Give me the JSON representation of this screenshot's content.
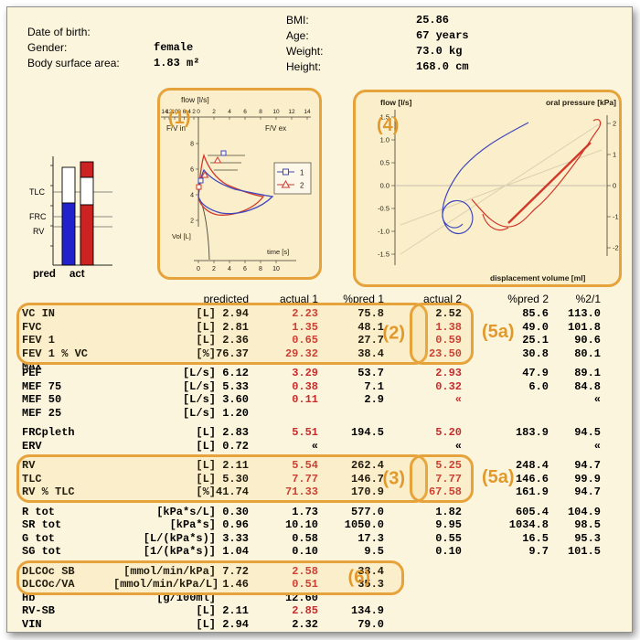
{
  "patient": {
    "dob_label": "Date of birth:",
    "gender_label": "Gender:",
    "gender": "female",
    "bsa_label": "Body surface area:",
    "bsa": "1.83 m²",
    "bmi_label": "BMI:",
    "bmi": "25.86",
    "age_label": "Age:",
    "age": "67 years",
    "weight_label": "Weight:",
    "weight": "73.0 kg",
    "height_label": "Height:",
    "height": "168.0 cm"
  },
  "annotations": {
    "fv_loop": "(1)",
    "spirometry": "(2)",
    "volumes": "(3)",
    "pv_loop": "(4)",
    "trial2_top": "(5a)",
    "trial2_mid": "(5a)",
    "diffusion": "(6)"
  },
  "volume_bars": {
    "ref_labels": [
      "TLC",
      "FRC",
      "RV"
    ],
    "pred_label": "pred",
    "act_label": "act"
  },
  "fv_chart": {
    "title": "flow [l/s]",
    "fv_in": "F/V in",
    "fv_ex": "F/V ex",
    "top_ticks": [
      "14",
      "12",
      "10",
      "8",
      "6",
      "4",
      "2",
      "0",
      "2",
      "4",
      "6",
      "8",
      "10",
      "12",
      "14"
    ],
    "flow_ticks": [
      "8",
      "6",
      "4",
      "2"
    ],
    "vol_label": "Vol [L]",
    "time_ticks": [
      "0",
      "2",
      "4",
      "6",
      "8",
      "10"
    ],
    "time_label": "time [s]",
    "legend_1": "1",
    "legend_2": "2"
  },
  "pv_chart": {
    "flow_label": "flow [l/s]",
    "pressure_label": "oral pressure [kPa]",
    "left_ticks": [
      "1.5",
      "1.0",
      "0.5",
      "0.0",
      "-0.5",
      "-1.0",
      "-1.5"
    ],
    "right_ticks": [
      "2",
      "1",
      "0",
      "-1",
      "-2"
    ],
    "volume_label": "displacement volume [ml]"
  },
  "colors": {
    "trial1_blue": "#2233cc",
    "trial2_red": "#cc2222",
    "annotation_orange": "#e7a33b",
    "abnormal_red": "#c52d2d",
    "page_cream": "#fcf5dd"
  },
  "table": {
    "headers": {
      "pred": "predicted",
      "act1": "actual 1",
      "pp1": "%pred 1",
      "act2": "actual 2",
      "pp2": "%pred 2",
      "ratio": "%2/1"
    },
    "rows": [
      {
        "name": "VC IN",
        "unit": "[L]",
        "pred": "2.94",
        "act1": "2.23",
        "act1_red": true,
        "pp1": "75.8",
        "act2": "2.52",
        "pp2": "85.6",
        "ratio": "113.0"
      },
      {
        "name": "FVC",
        "unit": "[L]",
        "pred": "2.81",
        "act1": "1.35",
        "act1_red": true,
        "pp1": "48.1",
        "act2": "1.38",
        "act2_red": true,
        "pp2": "49.0",
        "ratio": "101.8"
      },
      {
        "name": "FEV 1",
        "unit": "[L]",
        "pred": "2.36",
        "act1": "0.65",
        "act1_red": true,
        "pp1": "27.7",
        "act2": "0.59",
        "act2_red": true,
        "pp2": "25.1",
        "ratio": "90.6"
      },
      {
        "name": "FEV 1 % VC MAX",
        "unit": "[%]",
        "pred": "76.37",
        "act1": "29.32",
        "act1_red": true,
        "pp1": "38.4",
        "act2": "23.50",
        "act2_red": true,
        "pp2": "30.8",
        "ratio": "80.1"
      },
      {
        "name": "PEF",
        "unit": "[L/s]",
        "pred": "6.12",
        "act1": "3.29",
        "act1_red": true,
        "pp1": "53.7",
        "act2": "2.93",
        "act2_red": true,
        "pp2": "47.9",
        "ratio": "89.1",
        "gap": true
      },
      {
        "name": "MEF 75",
        "unit": "[L/s]",
        "pred": "5.33",
        "act1": "0.38",
        "act1_red": true,
        "pp1": "7.1",
        "act2": "0.32",
        "act2_red": true,
        "pp2": "6.0",
        "ratio": "84.8"
      },
      {
        "name": "MEF 50",
        "unit": "[L/s]",
        "pred": "3.60",
        "act1": "0.11",
        "act1_red": true,
        "pp1": "2.9",
        "act2": "«",
        "act2_red": true,
        "ratio": "«"
      },
      {
        "name": "MEF 25",
        "unit": "[L/s]",
        "pred": "1.20"
      },
      {
        "name": "FRCpleth",
        "unit": "[L]",
        "pred": "2.83",
        "act1": "5.51",
        "act1_red": true,
        "pp1": "194.5",
        "act2": "5.20",
        "act2_red": true,
        "pp2": "183.9",
        "ratio": "94.5",
        "gap": true
      },
      {
        "name": "ERV",
        "unit": "[L]",
        "pred": "0.72",
        "act1": "«",
        "act2": "«",
        "ratio": "«"
      },
      {
        "name": "RV",
        "unit": "[L]",
        "pred": "2.11",
        "act1": "5.54",
        "act1_red": true,
        "pp1": "262.4",
        "act2": "5.25",
        "act2_red": true,
        "pp2": "248.4",
        "ratio": "94.7",
        "gap": true
      },
      {
        "name": "TLC",
        "unit": "[L]",
        "pred": "5.30",
        "act1": "7.77",
        "act1_red": true,
        "pp1": "146.7",
        "act2": "7.77",
        "act2_red": true,
        "pp2": "146.6",
        "ratio": "99.9"
      },
      {
        "name": "RV % TLC",
        "unit": "[%]",
        "pred": "41.74",
        "act1": "71.33",
        "act1_red": true,
        "pp1": "170.9",
        "act2": "67.58",
        "act2_red": true,
        "pp2": "161.9",
        "ratio": "94.7"
      },
      {
        "name": "R tot",
        "unit": "[kPa*s/L]",
        "pred": "0.30",
        "act1": "1.73",
        "pp1": "577.0",
        "act2": "1.82",
        "pp2": "605.4",
        "ratio": "104.9",
        "gap": true
      },
      {
        "name": "SR tot",
        "unit": "[kPa*s]",
        "pred": "0.96",
        "act1": "10.10",
        "pp1": "1050.0",
        "act2": "9.95",
        "pp2": "1034.8",
        "ratio": "98.5"
      },
      {
        "name": "G tot",
        "unit": "[L/(kPa*s)]",
        "pred": "3.33",
        "act1": "0.58",
        "pp1": "17.3",
        "act2": "0.55",
        "pp2": "16.5",
        "ratio": "95.3"
      },
      {
        "name": "SG tot",
        "unit": "[1/(kPa*s)]",
        "pred": "1.04",
        "act1": "0.10",
        "pp1": "9.5",
        "act2": "0.10",
        "pp2": "9.7",
        "ratio": "101.5"
      },
      {
        "name": "DLCOc SB",
        "unit": "[mmol/min/kPa]",
        "pred": "7.72",
        "act1": "2.58",
        "act1_red": true,
        "pp1": "33.4",
        "gap": true
      },
      {
        "name": "DLCOc/VA",
        "unit": "[mmol/min/kPa/L]",
        "pred": "1.46",
        "act1": "0.51",
        "act1_red": true,
        "pp1": "35.3"
      },
      {
        "name": "Hb",
        "unit": "[g/100ml]",
        "act1": "12.60"
      },
      {
        "name": "RV-SB",
        "unit": "[L]",
        "pred": "2.11",
        "act1": "2.85",
        "act1_red": true,
        "pp1": "134.9"
      },
      {
        "name": "VIN",
        "unit": "[L]",
        "pred": "2.94",
        "act1": "2.32",
        "pp1": "79.0"
      }
    ]
  }
}
